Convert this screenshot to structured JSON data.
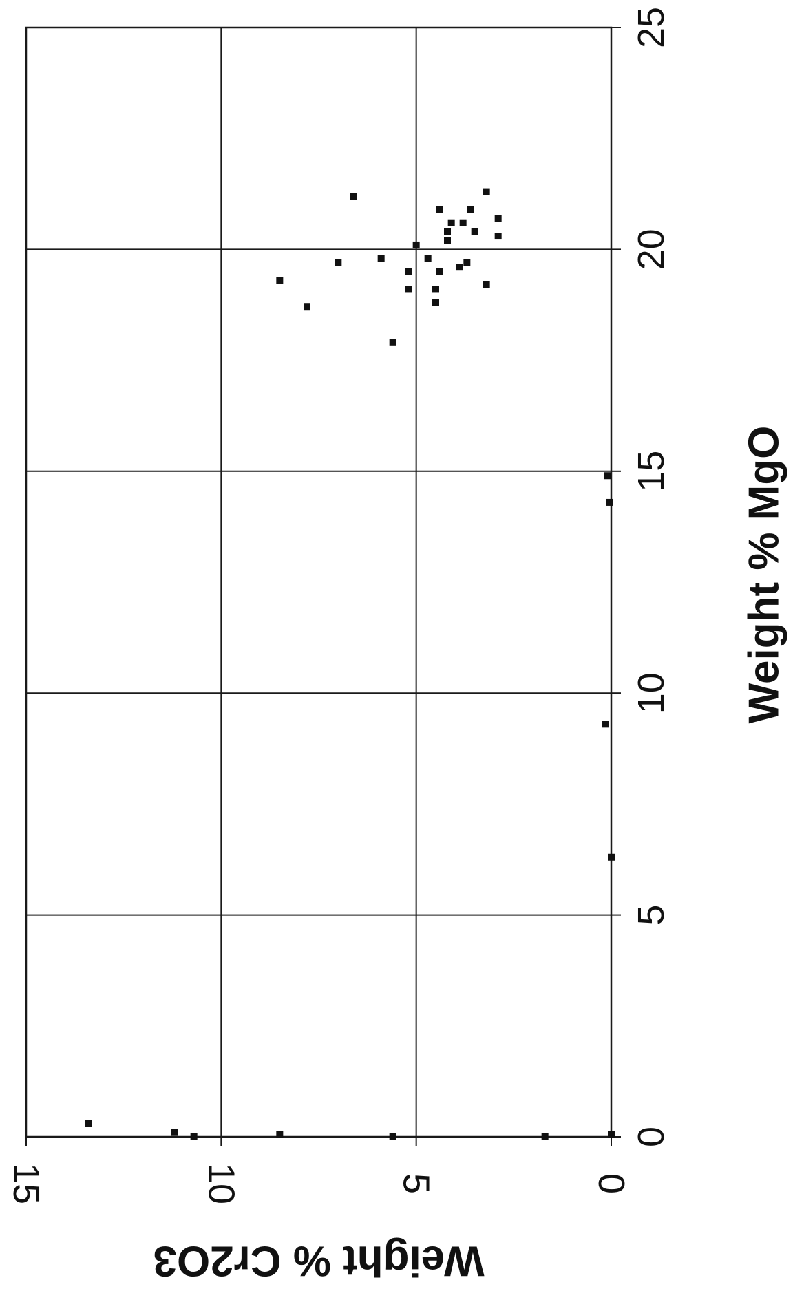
{
  "chart_data": {
    "type": "scatter",
    "title": "",
    "xlabel": "Weight % MgO",
    "ylabel": "Weight % Cr2O3",
    "xlim": [
      0,
      25
    ],
    "ylim": [
      0,
      15
    ],
    "x_ticks": [
      "0",
      "5",
      "10",
      "15",
      "20",
      "25"
    ],
    "y_ticks": [
      "0",
      "5",
      "10",
      "15"
    ],
    "grid": true,
    "legend": "none",
    "marker": "square",
    "marker_color": "#111111",
    "series": [
      {
        "points": [
          {
            "x": 0.3,
            "y": 13.4
          },
          {
            "x": 0.1,
            "y": 11.2
          },
          {
            "x": 0.0,
            "y": 10.7
          },
          {
            "x": 0.05,
            "y": 8.5
          },
          {
            "x": 0.0,
            "y": 5.6
          },
          {
            "x": 0.0,
            "y": 1.7
          },
          {
            "x": 0.05,
            "y": 0.0
          },
          {
            "x": 6.3,
            "y": 0.0
          },
          {
            "x": 9.3,
            "y": 0.15
          },
          {
            "x": 14.3,
            "y": 0.05
          },
          {
            "x": 14.9,
            "y": 0.1
          },
          {
            "x": 17.9,
            "y": 5.6
          },
          {
            "x": 18.7,
            "y": 7.8
          },
          {
            "x": 18.8,
            "y": 4.5
          },
          {
            "x": 19.1,
            "y": 4.5
          },
          {
            "x": 19.2,
            "y": 3.2
          },
          {
            "x": 19.3,
            "y": 8.5
          },
          {
            "x": 19.1,
            "y": 5.2
          },
          {
            "x": 19.5,
            "y": 4.4
          },
          {
            "x": 19.5,
            "y": 5.2
          },
          {
            "x": 19.6,
            "y": 3.9
          },
          {
            "x": 19.7,
            "y": 7.0
          },
          {
            "x": 19.8,
            "y": 5.9
          },
          {
            "x": 19.8,
            "y": 4.7
          },
          {
            "x": 19.7,
            "y": 3.7
          },
          {
            "x": 20.1,
            "y": 5.0
          },
          {
            "x": 20.2,
            "y": 4.2
          },
          {
            "x": 20.4,
            "y": 4.2
          },
          {
            "x": 20.4,
            "y": 3.5
          },
          {
            "x": 20.3,
            "y": 2.9
          },
          {
            "x": 20.6,
            "y": 3.8
          },
          {
            "x": 20.7,
            "y": 2.9
          },
          {
            "x": 20.6,
            "y": 4.1
          },
          {
            "x": 20.9,
            "y": 3.6
          },
          {
            "x": 20.9,
            "y": 4.4
          },
          {
            "x": 21.3,
            "y": 3.2
          },
          {
            "x": 21.2,
            "y": 6.6
          }
        ]
      }
    ]
  }
}
